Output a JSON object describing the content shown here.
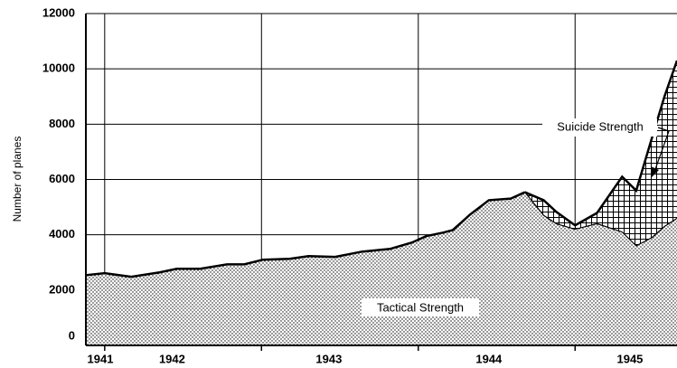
{
  "chart_data": {
    "type": "stacked_area",
    "ylabel": "Number of planes",
    "x": [
      1941.88,
      1942.0,
      1942.17,
      1942.35,
      1942.46,
      1942.61,
      1942.78,
      1942.89,
      1943.01,
      1943.18,
      1943.3,
      1943.47,
      1943.64,
      1943.82,
      1943.96,
      1944.05,
      1944.16,
      1944.22,
      1944.33,
      1944.45,
      1944.59,
      1944.68,
      1944.8,
      1944.88,
      1945.0,
      1945.14,
      1945.3,
      1945.39,
      1945.49,
      1945.57,
      1945.65
    ],
    "series": [
      {
        "name": "Tactical Strength",
        "color": "#000000",
        "values": [
          2540,
          2610,
          2480,
          2640,
          2770,
          2770,
          2930,
          2930,
          3100,
          3130,
          3230,
          3200,
          3390,
          3490,
          3720,
          3950,
          4080,
          4170,
          4730,
          5250,
          5310,
          5540,
          4700,
          4400,
          4200,
          4400,
          4100,
          3600,
          3900,
          4300,
          4600
        ]
      },
      {
        "name": "Suicide Strength",
        "color": "#000000",
        "values": [
          null,
          null,
          null,
          null,
          null,
          null,
          null,
          null,
          null,
          null,
          null,
          null,
          null,
          null,
          null,
          null,
          null,
          null,
          null,
          null,
          null,
          0,
          550,
          430,
          140,
          390,
          2000,
          2000,
          3600,
          4700,
          5700
        ]
      }
    ],
    "xlim": [
      1941.88,
      1945.65
    ],
    "xticks": [
      {
        "value": 1941.88,
        "label": "1941"
      },
      {
        "value": 1942.43,
        "label": "1942"
      },
      {
        "value": 1943.43,
        "label": "1943"
      },
      {
        "value": 1944.45,
        "label": "1944"
      },
      {
        "value": 1945.35,
        "label": "1945"
      }
    ],
    "xgrid": [
      1942,
      1943,
      1944,
      1945
    ],
    "ylim": [
      0,
      12000
    ],
    "yticks": [
      0,
      2000,
      4000,
      6000,
      8000,
      10000,
      12000
    ],
    "grid": true
  }
}
